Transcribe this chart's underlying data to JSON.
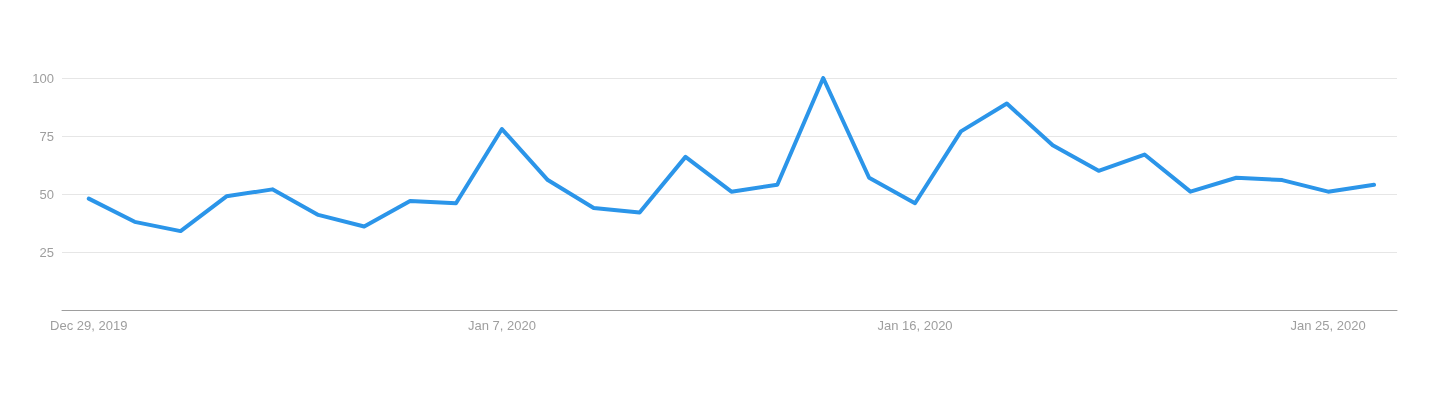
{
  "chart_data": {
    "type": "line",
    "x": [
      "2019-12-29",
      "2019-12-30",
      "2019-12-31",
      "2020-01-01",
      "2020-01-02",
      "2020-01-03",
      "2020-01-04",
      "2020-01-05",
      "2020-01-06",
      "2020-01-07",
      "2020-01-08",
      "2020-01-09",
      "2020-01-10",
      "2020-01-11",
      "2020-01-12",
      "2020-01-13",
      "2020-01-14",
      "2020-01-15",
      "2020-01-16",
      "2020-01-17",
      "2020-01-18",
      "2020-01-19",
      "2020-01-20",
      "2020-01-21",
      "2020-01-22",
      "2020-01-23",
      "2020-01-24",
      "2020-01-25",
      "2020-01-26"
    ],
    "series": [
      {
        "color": "#2b95e9",
        "values": [
          48,
          38,
          34,
          49,
          52,
          41,
          36,
          47,
          46,
          78,
          56,
          44,
          42,
          66,
          51,
          54,
          100,
          57,
          46,
          77,
          89,
          71,
          60,
          67,
          51,
          57,
          56,
          51,
          54
        ]
      }
    ],
    "xlim": [
      "2019-12-28T10:00",
      "2020-01-26T12:00"
    ],
    "xticks": [
      {
        "value": "2019-12-29",
        "label": "Dec 29, 2019"
      },
      {
        "value": "2020-01-07",
        "label": "Jan 7, 2020"
      },
      {
        "value": "2020-01-16",
        "label": "Jan 16, 2020"
      },
      {
        "value": "2020-01-25",
        "label": "Jan 25, 2020"
      }
    ],
    "ylim": [
      0,
      100
    ],
    "yticks": [
      {
        "value": 0,
        "label": null
      },
      25,
      50,
      75,
      100
    ],
    "grid": "y",
    "marker": "none",
    "line_style": "solid"
  }
}
